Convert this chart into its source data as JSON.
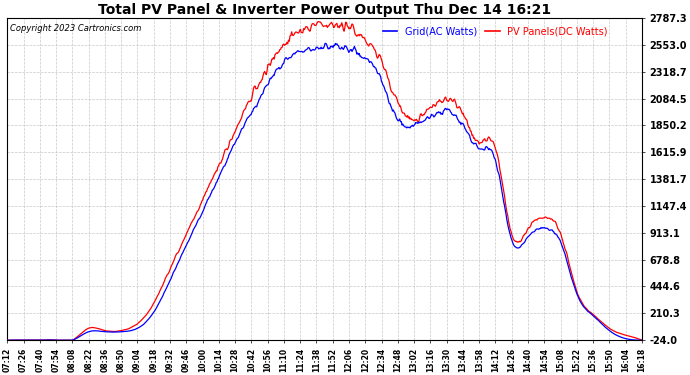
{
  "title": "Total PV Panel & Inverter Power Output Thu Dec 14 16:21",
  "copyright": "Copyright 2023 Cartronics.com",
  "legend_grid": "Grid(AC Watts)",
  "legend_pv": "PV Panels(DC Watts)",
  "color_grid": "blue",
  "color_pv": "red",
  "background_color": "#ffffff",
  "grid_color": "#bbbbbb",
  "ylim": [
    -24.0,
    2787.3
  ],
  "yticks": [
    -24.0,
    210.3,
    444.6,
    678.8,
    913.1,
    1147.4,
    1381.7,
    1615.9,
    1850.2,
    2084.5,
    2318.7,
    2553.0,
    2787.3
  ],
  "xtick_labels": [
    "07:12",
    "07:26",
    "07:40",
    "07:54",
    "08:08",
    "08:22",
    "08:36",
    "08:50",
    "09:04",
    "09:18",
    "09:32",
    "09:46",
    "10:00",
    "10:14",
    "10:28",
    "10:42",
    "10:56",
    "11:10",
    "11:24",
    "11:38",
    "11:52",
    "12:06",
    "12:20",
    "12:34",
    "12:48",
    "13:02",
    "13:16",
    "13:30",
    "13:44",
    "13:58",
    "14:12",
    "14:26",
    "14:40",
    "14:54",
    "15:08",
    "15:22",
    "15:36",
    "15:50",
    "16:04",
    "16:18"
  ],
  "pv_keypoints": [
    [
      0,
      -24
    ],
    [
      1,
      -24
    ],
    [
      2,
      -24
    ],
    [
      3,
      -24
    ],
    [
      4,
      -24
    ],
    [
      5,
      80
    ],
    [
      6,
      60
    ],
    [
      7,
      60
    ],
    [
      8,
      120
    ],
    [
      9,
      300
    ],
    [
      10,
      600
    ],
    [
      11,
      900
    ],
    [
      12,
      1200
    ],
    [
      13,
      1500
    ],
    [
      14,
      1800
    ],
    [
      15,
      2100
    ],
    [
      16,
      2350
    ],
    [
      17,
      2550
    ],
    [
      18,
      2670
    ],
    [
      19,
      2720
    ],
    [
      20,
      2740
    ],
    [
      21,
      2700
    ],
    [
      22,
      2600
    ],
    [
      23,
      2400
    ],
    [
      24,
      2050
    ],
    [
      25,
      1900
    ],
    [
      26,
      2000
    ],
    [
      27,
      2080
    ],
    [
      28,
      1950
    ],
    [
      29,
      1700
    ],
    [
      30,
      1650
    ],
    [
      31,
      900
    ],
    [
      32,
      950
    ],
    [
      33,
      1050
    ],
    [
      34,
      900
    ],
    [
      35,
      400
    ],
    [
      36,
      200
    ],
    [
      37,
      80
    ],
    [
      38,
      20
    ],
    [
      39,
      -24
    ]
  ],
  "grid_keypoints": [
    [
      0,
      -24
    ],
    [
      1,
      -24
    ],
    [
      2,
      -24
    ],
    [
      3,
      -24
    ],
    [
      4,
      -24
    ],
    [
      5,
      50
    ],
    [
      6,
      50
    ],
    [
      7,
      50
    ],
    [
      8,
      80
    ],
    [
      9,
      220
    ],
    [
      10,
      500
    ],
    [
      11,
      800
    ],
    [
      12,
      1100
    ],
    [
      13,
      1400
    ],
    [
      14,
      1700
    ],
    [
      15,
      1950
    ],
    [
      16,
      2200
    ],
    [
      17,
      2400
    ],
    [
      18,
      2500
    ],
    [
      19,
      2530
    ],
    [
      20,
      2540
    ],
    [
      21,
      2510
    ],
    [
      22,
      2440
    ],
    [
      23,
      2250
    ],
    [
      24,
      1900
    ],
    [
      25,
      1850
    ],
    [
      26,
      1920
    ],
    [
      27,
      1980
    ],
    [
      28,
      1850
    ],
    [
      29,
      1650
    ],
    [
      30,
      1550
    ],
    [
      31,
      850
    ],
    [
      32,
      880
    ],
    [
      33,
      950
    ],
    [
      34,
      830
    ],
    [
      35,
      380
    ],
    [
      36,
      190
    ],
    [
      37,
      60
    ],
    [
      38,
      -10
    ],
    [
      39,
      -24
    ]
  ]
}
